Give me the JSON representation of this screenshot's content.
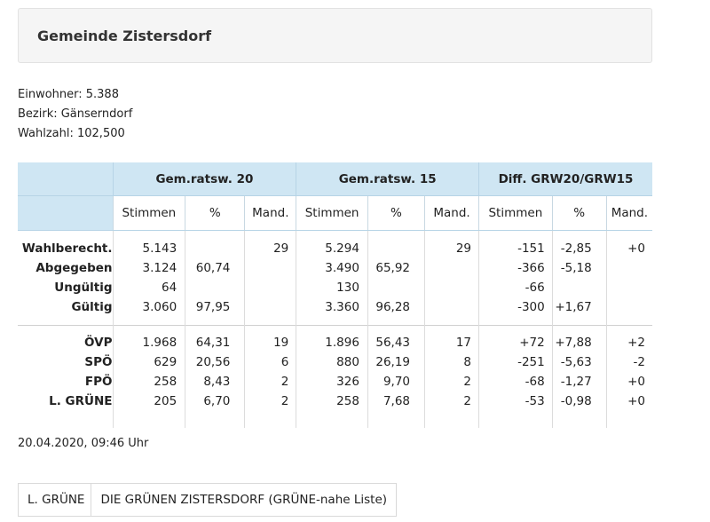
{
  "title": "Gemeinde Zistersdorf",
  "info": {
    "einwohner": "Einwohner: 5.388",
    "bezirk": "Bezirk: Gänserndorf",
    "wahlzahl": "Wahlzahl: 102,500"
  },
  "table": {
    "group_headers": [
      "Gem.ratsw. 20",
      "Gem.ratsw. 15",
      "Diff. GRW20/GRW15"
    ],
    "sub_headers": [
      "Stimmen",
      "%",
      "Mand.",
      "Stimmen",
      "%",
      "Mand.",
      "Stimmen",
      "%",
      "Mand."
    ],
    "summary_rows": [
      {
        "label": "Wahlberecht.",
        "values": [
          "5.143",
          "",
          "29",
          "5.294",
          "",
          "29",
          "-151",
          "-2,85",
          "+0"
        ]
      },
      {
        "label": "Abgegeben",
        "values": [
          "3.124",
          "60,74",
          "",
          "3.490",
          "65,92",
          "",
          "-366",
          "-5,18",
          ""
        ]
      },
      {
        "label": "Ungültig",
        "values": [
          "64",
          "",
          "",
          "130",
          "",
          "",
          "-66",
          "",
          ""
        ]
      },
      {
        "label": "Gültig",
        "values": [
          "3.060",
          "97,95",
          "",
          "3.360",
          "96,28",
          "",
          "-300",
          "+1,67",
          ""
        ]
      }
    ],
    "party_rows": [
      {
        "label": "ÖVP",
        "values": [
          "1.968",
          "64,31",
          "19",
          "1.896",
          "56,43",
          "17",
          "+72",
          "+7,88",
          "+2"
        ]
      },
      {
        "label": "SPÖ",
        "values": [
          "629",
          "20,56",
          "6",
          "880",
          "26,19",
          "8",
          "-251",
          "-5,63",
          "-2"
        ]
      },
      {
        "label": "FPÖ",
        "values": [
          "258",
          "8,43",
          "2",
          "326",
          "9,70",
          "2",
          "-68",
          "-1,27",
          "+0"
        ]
      },
      {
        "label": "L. GRÜNE",
        "values": [
          "205",
          "6,70",
          "2",
          "258",
          "7,68",
          "2",
          "-53",
          "-0,98",
          "+0"
        ]
      }
    ]
  },
  "timestamp": "20.04.2020, 09:46 Uhr",
  "legend": {
    "abbr": "L. GRÜNE",
    "full": "DIE GRÜNEN ZISTERSDORF (GRÜNE-nahe Liste)"
  }
}
